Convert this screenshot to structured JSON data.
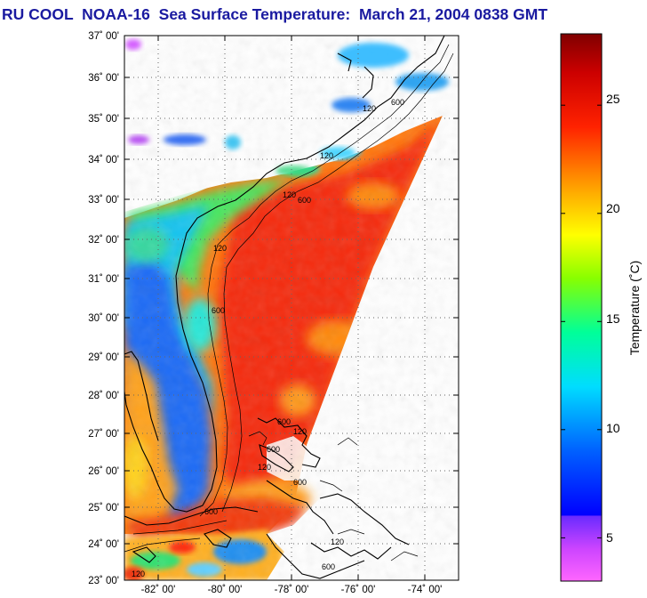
{
  "title": "RU COOL  NOAA-16  Sea Surface Temperature:  March 21, 2004 0838 GMT",
  "map": {
    "lat_ticks": [
      "37˚ 00'",
      "36˚ 00'",
      "35˚ 00'",
      "34˚ 00'",
      "33˚ 00'",
      "32˚ 00'",
      "31˚ 00'",
      "30˚ 00'",
      "29˚ 00'",
      "28˚ 00'",
      "27˚ 00'",
      "26˚ 00'",
      "25˚ 00'",
      "24˚ 00'",
      "23˚ 00'"
    ],
    "lon_ticks": [
      "-82˚ 00'",
      "-80˚ 00'",
      "-78˚ 00'",
      "-76˚ 00'",
      "-74˚ 00'"
    ],
    "contour_labels": [
      "120",
      "600",
      "120",
      "600",
      "120",
      "600",
      "120",
      "600",
      "120",
      "600",
      "120",
      "600",
      "600",
      "120",
      "600",
      "120"
    ],
    "colors": {
      "frame": "#000000",
      "land": "#ffffff",
      "title": "#1a1aa0"
    }
  },
  "colorbar": {
    "label": "Temperature (˚C)",
    "ticks": [
      "25",
      "20",
      "15",
      "10",
      "5"
    ],
    "min": 3,
    "max": 28.3,
    "stops": [
      {
        "value": 3,
        "color": "#ff66ff"
      },
      {
        "value": 4.5,
        "color": "#cc44ff"
      },
      {
        "value": 6,
        "color": "#6a2bff"
      },
      {
        "value": 6.05,
        "color": "#0000ff"
      },
      {
        "value": 9,
        "color": "#0060ff"
      },
      {
        "value": 12,
        "color": "#00ddff"
      },
      {
        "value": 14.5,
        "color": "#00ff99"
      },
      {
        "value": 17,
        "color": "#88ff00"
      },
      {
        "value": 19,
        "color": "#ffff00"
      },
      {
        "value": 21,
        "color": "#ffaa00"
      },
      {
        "value": 24,
        "color": "#ff2200"
      },
      {
        "value": 26.5,
        "color": "#cc0000"
      },
      {
        "value": 28.3,
        "color": "#800000"
      }
    ]
  }
}
